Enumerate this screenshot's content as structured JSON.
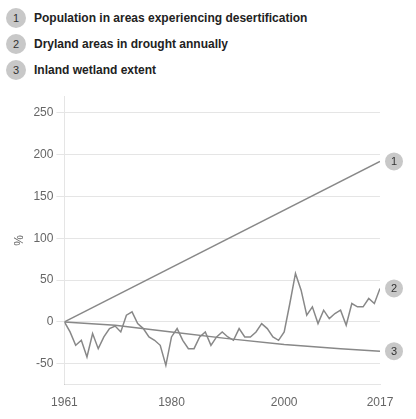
{
  "chart_data": {
    "type": "line",
    "y_label": "%",
    "xlim": [
      1961,
      2017
    ],
    "ylim": [
      -75,
      270
    ],
    "xticks": [
      1961,
      1980,
      2000,
      2017
    ],
    "yticks": [
      -50,
      0,
      50,
      100,
      150,
      200,
      250
    ],
    "grid": true,
    "series": [
      {
        "name": "Population in areas experiencing desertification",
        "label": "1",
        "color": "#888888",
        "x": [
          1961,
          2017
        ],
        "values": [
          0,
          192
        ]
      },
      {
        "name": "Dryland areas in drought annually",
        "label": "2",
        "color": "#888888",
        "x": [
          1961,
          1962,
          1963,
          1964,
          1965,
          1966,
          1967,
          1968,
          1969,
          1970,
          1971,
          1972,
          1973,
          1974,
          1975,
          1976,
          1977,
          1978,
          1979,
          1980,
          1981,
          1982,
          1983,
          1984,
          1985,
          1986,
          1987,
          1988,
          1989,
          1990,
          1991,
          1992,
          1993,
          1994,
          1995,
          1996,
          1997,
          1998,
          1999,
          2000,
          2001,
          2002,
          2003,
          2004,
          2005,
          2006,
          2007,
          2008,
          2009,
          2010,
          2011,
          2012,
          2013,
          2014,
          2015,
          2016,
          2017
        ],
        "values": [
          0,
          -12,
          -28,
          -22,
          -42,
          -14,
          -32,
          -18,
          -8,
          -5,
          -12,
          8,
          12,
          -2,
          -8,
          -18,
          -22,
          -28,
          -52,
          -18,
          -8,
          -22,
          -32,
          -32,
          -18,
          -12,
          -28,
          -18,
          -12,
          -18,
          -22,
          -8,
          -18,
          -18,
          -12,
          -2,
          -8,
          -18,
          -22,
          -12,
          22,
          58,
          38,
          8,
          18,
          -2,
          14,
          4,
          10,
          14,
          -4,
          22,
          18,
          18,
          28,
          22,
          40
        ]
      },
      {
        "name": "Inland wetland extent",
        "label": "3",
        "color": "#888888",
        "x": [
          1961,
          1970,
          1980,
          1990,
          2000,
          2010,
          2017
        ],
        "values": [
          0,
          -4,
          -12,
          -20,
          -27,
          -32,
          -35
        ]
      }
    ]
  }
}
